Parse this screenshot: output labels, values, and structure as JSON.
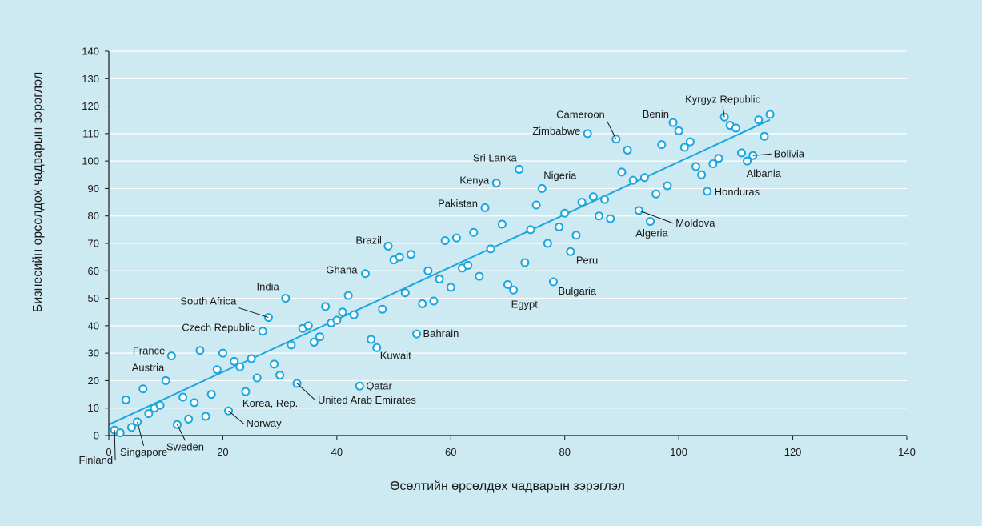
{
  "chart_data": {
    "type": "scatter",
    "xlabel": "Өсөлтийн өрсөлдөх чадварын зэрэглэл",
    "ylabel": "Бизнесийн өрсөлдөх чадварын зэрэглэл",
    "xlim": [
      0,
      140
    ],
    "ylim": [
      0,
      140
    ],
    "x_ticks": [
      0,
      20,
      40,
      60,
      80,
      100,
      120,
      140
    ],
    "y_ticks": [
      0,
      10,
      20,
      30,
      40,
      50,
      60,
      70,
      80,
      90,
      100,
      110,
      120,
      130,
      140
    ],
    "grid": "horizontal",
    "colors": {
      "marker": "#1aa7df",
      "trend": "#1aa7df",
      "background": "#cde9f1",
      "grid": "#ffffff",
      "axis": "#1a1a1a"
    },
    "trendline": {
      "x": [
        0,
        116
      ],
      "y": [
        4,
        115
      ]
    },
    "points": [
      {
        "x": 1,
        "y": 2,
        "label": "Finland"
      },
      {
        "x": 2,
        "y": 1
      },
      {
        "x": 3,
        "y": 13
      },
      {
        "x": 4,
        "y": 3
      },
      {
        "x": 5,
        "y": 5,
        "label": "Singapore"
      },
      {
        "x": 6,
        "y": 17
      },
      {
        "x": 7,
        "y": 8
      },
      {
        "x": 8,
        "y": 10
      },
      {
        "x": 9,
        "y": 11
      },
      {
        "x": 10,
        "y": 20,
        "label": "Austria"
      },
      {
        "x": 11,
        "y": 29,
        "label": "France"
      },
      {
        "x": 12,
        "y": 4,
        "label": "Sweden"
      },
      {
        "x": 13,
        "y": 14
      },
      {
        "x": 14,
        "y": 6
      },
      {
        "x": 15,
        "y": 12
      },
      {
        "x": 16,
        "y": 31
      },
      {
        "x": 17,
        "y": 7
      },
      {
        "x": 18,
        "y": 15
      },
      {
        "x": 19,
        "y": 24
      },
      {
        "x": 20,
        "y": 30
      },
      {
        "x": 21,
        "y": 9,
        "label": "Norway"
      },
      {
        "x": 22,
        "y": 27
      },
      {
        "x": 23,
        "y": 25
      },
      {
        "x": 24,
        "y": 16,
        "label": "Korea, Rep."
      },
      {
        "x": 25,
        "y": 28
      },
      {
        "x": 26,
        "y": 21
      },
      {
        "x": 27,
        "y": 38,
        "label": "Czech Republic"
      },
      {
        "x": 28,
        "y": 43,
        "label": "South Africa"
      },
      {
        "x": 29,
        "y": 26
      },
      {
        "x": 30,
        "y": 22
      },
      {
        "x": 31,
        "y": 50,
        "label": "India"
      },
      {
        "x": 32,
        "y": 33
      },
      {
        "x": 33,
        "y": 19,
        "label": "United Arab Emirates"
      },
      {
        "x": 34,
        "y": 39
      },
      {
        "x": 35,
        "y": 40
      },
      {
        "x": 36,
        "y": 34
      },
      {
        "x": 37,
        "y": 36
      },
      {
        "x": 38,
        "y": 47
      },
      {
        "x": 39,
        "y": 41
      },
      {
        "x": 40,
        "y": 42
      },
      {
        "x": 41,
        "y": 45
      },
      {
        "x": 42,
        "y": 51
      },
      {
        "x": 43,
        "y": 44
      },
      {
        "x": 44,
        "y": 18,
        "label": "Qatar"
      },
      {
        "x": 45,
        "y": 59,
        "label": "Ghana"
      },
      {
        "x": 46,
        "y": 35
      },
      {
        "x": 47,
        "y": 32,
        "label": "Kuwait"
      },
      {
        "x": 48,
        "y": 46
      },
      {
        "x": 49,
        "y": 69,
        "label": "Brazil"
      },
      {
        "x": 50,
        "y": 64
      },
      {
        "x": 51,
        "y": 65
      },
      {
        "x": 52,
        "y": 52
      },
      {
        "x": 53,
        "y": 66
      },
      {
        "x": 54,
        "y": 37,
        "label": "Bahrain"
      },
      {
        "x": 55,
        "y": 48
      },
      {
        "x": 56,
        "y": 60
      },
      {
        "x": 57,
        "y": 49
      },
      {
        "x": 58,
        "y": 57
      },
      {
        "x": 59,
        "y": 71
      },
      {
        "x": 60,
        "y": 54
      },
      {
        "x": 61,
        "y": 72
      },
      {
        "x": 62,
        "y": 61
      },
      {
        "x": 63,
        "y": 62
      },
      {
        "x": 64,
        "y": 74
      },
      {
        "x": 65,
        "y": 58
      },
      {
        "x": 66,
        "y": 83,
        "label": "Pakistan"
      },
      {
        "x": 67,
        "y": 68
      },
      {
        "x": 68,
        "y": 92,
        "label": "Kenya"
      },
      {
        "x": 69,
        "y": 77
      },
      {
        "x": 70,
        "y": 55
      },
      {
        "x": 71,
        "y": 53,
        "label": "Egypt"
      },
      {
        "x": 72,
        "y": 97,
        "label": "Sri Lanka"
      },
      {
        "x": 73,
        "y": 63
      },
      {
        "x": 74,
        "y": 75
      },
      {
        "x": 75,
        "y": 84
      },
      {
        "x": 76,
        "y": 90,
        "label": "Nigeria"
      },
      {
        "x": 77,
        "y": 70
      },
      {
        "x": 78,
        "y": 56,
        "label": "Bulgaria"
      },
      {
        "x": 79,
        "y": 76
      },
      {
        "x": 80,
        "y": 81
      },
      {
        "x": 81,
        "y": 67,
        "label": "Peru"
      },
      {
        "x": 82,
        "y": 73
      },
      {
        "x": 83,
        "y": 85
      },
      {
        "x": 84,
        "y": 110,
        "label": "Zimbabwe"
      },
      {
        "x": 85,
        "y": 87
      },
      {
        "x": 86,
        "y": 80
      },
      {
        "x": 87,
        "y": 86
      },
      {
        "x": 88,
        "y": 79
      },
      {
        "x": 89,
        "y": 108,
        "label": "Cameroon"
      },
      {
        "x": 90,
        "y": 96
      },
      {
        "x": 91,
        "y": 104
      },
      {
        "x": 92,
        "y": 93
      },
      {
        "x": 93,
        "y": 82,
        "label": "Moldova"
      },
      {
        "x": 94,
        "y": 94
      },
      {
        "x": 95,
        "y": 78,
        "label": "Algeria"
      },
      {
        "x": 96,
        "y": 88
      },
      {
        "x": 97,
        "y": 106
      },
      {
        "x": 98,
        "y": 91
      },
      {
        "x": 99,
        "y": 114,
        "label": "Benin"
      },
      {
        "x": 100,
        "y": 111
      },
      {
        "x": 101,
        "y": 105
      },
      {
        "x": 102,
        "y": 107
      },
      {
        "x": 103,
        "y": 98
      },
      {
        "x": 104,
        "y": 95
      },
      {
        "x": 105,
        "y": 89,
        "label": "Honduras"
      },
      {
        "x": 106,
        "y": 99
      },
      {
        "x": 107,
        "y": 101
      },
      {
        "x": 108,
        "y": 116,
        "label": "Kyrgyz Republic"
      },
      {
        "x": 109,
        "y": 113
      },
      {
        "x": 110,
        "y": 112
      },
      {
        "x": 111,
        "y": 103
      },
      {
        "x": 112,
        "y": 100,
        "label": "Albania"
      },
      {
        "x": 113,
        "y": 102,
        "label": "Bolivia"
      },
      {
        "x": 114,
        "y": 115
      },
      {
        "x": 115,
        "y": 109
      },
      {
        "x": 116,
        "y": 117
      }
    ]
  }
}
